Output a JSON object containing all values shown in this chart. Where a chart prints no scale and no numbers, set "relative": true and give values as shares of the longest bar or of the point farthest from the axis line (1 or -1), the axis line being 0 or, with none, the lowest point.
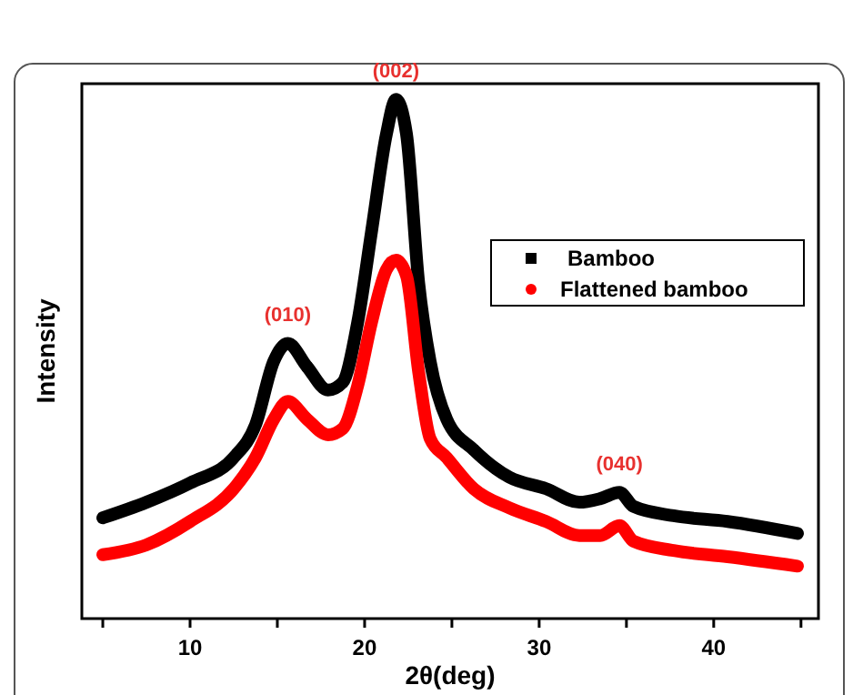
{
  "chart_data": {
    "type": "line",
    "xlabel": "2θ(deg)",
    "ylabel": "Intensity",
    "relative": true,
    "x": [
      5,
      7.5,
      10,
      12.5,
      13.75,
      14.8,
      15.6,
      16.7,
      17.9,
      18.75,
      19.6,
      20.4,
      21.25,
      21.8,
      22.4,
      23.1,
      23.75,
      24.7,
      26.25,
      28.3,
      30.4,
      32.3,
      33.5,
      34.6,
      35.4,
      37.7,
      40.8,
      44.8
    ],
    "xlim": [
      3.8,
      46
    ],
    "xticks": [
      {
        "value": 5,
        "label": null
      },
      10,
      {
        "value": 15,
        "label": null
      },
      20,
      {
        "value": 25,
        "label": null
      },
      30,
      {
        "value": 35,
        "label": null
      },
      40,
      {
        "value": 45,
        "label": null
      }
    ],
    "series": [
      {
        "name": "Bamboo",
        "color": "#000000",
        "marker": "square",
        "values": [
          0.194,
          0.224,
          0.261,
          0.31,
          0.373,
          0.496,
          0.53,
          0.485,
          0.44,
          0.455,
          0.57,
          0.746,
          0.933,
          1.0,
          0.933,
          0.646,
          0.496,
          0.384,
          0.325,
          0.272,
          0.25,
          0.224,
          0.231,
          0.243,
          0.216,
          0.198,
          0.187,
          0.164
        ]
      },
      {
        "name": "Flattened bamboo",
        "color": "#ff0000",
        "marker": "circle",
        "values": [
          0.123,
          0.142,
          0.187,
          0.25,
          0.31,
          0.384,
          0.418,
          0.384,
          0.354,
          0.366,
          0.448,
          0.571,
          0.672,
          0.69,
          0.66,
          0.474,
          0.347,
          0.31,
          0.25,
          0.213,
          0.187,
          0.16,
          0.16,
          0.179,
          0.149,
          0.131,
          0.119,
          0.101
        ]
      }
    ],
    "annotations": [
      {
        "text": "(010)",
        "x": 15.6,
        "y": 0.53
      },
      {
        "text": "(002)",
        "x": 21.8,
        "y": 1.0
      },
      {
        "text": "(040)",
        "x": 34.6,
        "y": 0.243
      }
    ],
    "legend": "top right",
    "grid": false
  }
}
